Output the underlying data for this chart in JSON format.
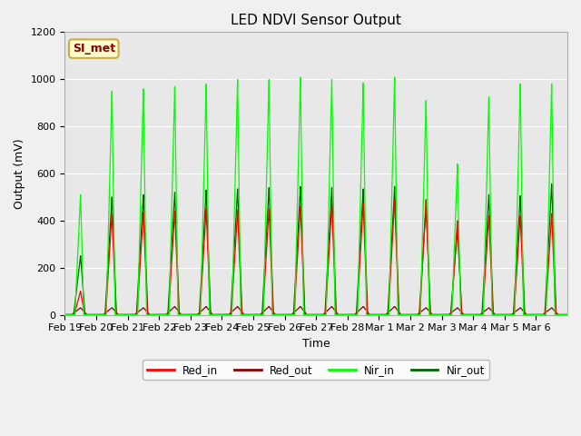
{
  "title": "LED NDVI Sensor Output",
  "xlabel": "Time",
  "ylabel": "Output (mV)",
  "ylim": [
    0,
    1200
  ],
  "n_days": 16,
  "xtick_labels": [
    "Feb 19",
    "Feb 20",
    "Feb 21",
    "Feb 22",
    "Feb 23",
    "Feb 24",
    "Feb 25",
    "Feb 26",
    "Feb 27",
    "Feb 28",
    "Mar 1",
    "Mar 2",
    "Mar 3",
    "Mar 4",
    "Mar 5",
    "Mar 6"
  ],
  "legend_entries": [
    "Red_in",
    "Red_out",
    "Nir_in",
    "Nir_out"
  ],
  "legend_colors": [
    "#ff0000",
    "#8b0000",
    "#00ff00",
    "#006400"
  ],
  "annotation_text": "SI_met",
  "annotation_color": "#8b0000",
  "annotation_bg": "#ffffcc",
  "fig_bg": "#f0f0f0",
  "plot_bg": "#e8e8e8",
  "red_in_color": "#ff0000",
  "red_out_color": "#8b0000",
  "nir_in_color": "#00ff00",
  "nir_out_color": "#006400",
  "red_in_peaks": [
    100,
    430,
    435,
    440,
    450,
    445,
    450,
    460,
    470,
    475,
    490,
    490,
    400,
    420,
    420,
    430
  ],
  "red_out_peaks": [
    30,
    30,
    30,
    35,
    35,
    35,
    35,
    35,
    35,
    35,
    35,
    30,
    30,
    30,
    30,
    30
  ],
  "nir_in_peaks": [
    510,
    950,
    960,
    970,
    980,
    1000,
    1000,
    1010,
    1000,
    985,
    1010,
    910,
    640,
    925,
    980,
    980
  ],
  "nir_out_peaks": [
    250,
    500,
    510,
    520,
    530,
    535,
    540,
    545,
    540,
    535,
    545,
    460,
    360,
    510,
    505,
    555
  ]
}
